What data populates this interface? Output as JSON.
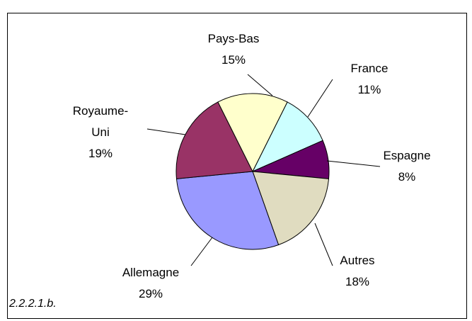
{
  "chart_data": {
    "type": "pie",
    "categories": [
      "France",
      "Espagne",
      "Autres",
      "Allemagne",
      "Royaume-Uni",
      "Pays-Bas"
    ],
    "values": [
      11,
      8,
      18,
      29,
      19,
      15
    ],
    "value_labels": [
      "11%",
      "8%",
      "18%",
      "29%",
      "19%",
      "15%"
    ],
    "colors": [
      "#ccffff",
      "#660066",
      "#e0dcc0",
      "#9999ff",
      "#993366",
      "#ffffcc"
    ],
    "footnote": "2.2.2.1.b."
  }
}
